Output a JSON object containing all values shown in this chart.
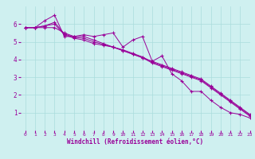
{
  "background_color": "#cff0f0",
  "grid_color": "#aadddd",
  "line_color": "#990099",
  "marker": "+",
  "xlim": [
    -0.5,
    23
  ],
  "ylim": [
    0,
    7
  ],
  "xlabel": "Windchill (Refroidissement éolien,°C)",
  "xticks": [
    0,
    1,
    2,
    3,
    4,
    5,
    6,
    7,
    8,
    9,
    10,
    11,
    12,
    13,
    14,
    15,
    16,
    17,
    18,
    19,
    20,
    21,
    22,
    23
  ],
  "yticks": [
    1,
    2,
    3,
    4,
    5,
    6
  ],
  "series": [
    [
      5.8,
      5.8,
      6.2,
      6.5,
      5.3,
      5.3,
      5.4,
      5.3,
      5.4,
      5.5,
      4.7,
      5.1,
      5.3,
      3.9,
      4.2,
      3.2,
      2.8,
      2.2,
      2.2,
      1.7,
      1.3,
      1.0,
      0.9,
      0.7
    ],
    [
      5.8,
      5.8,
      5.8,
      5.8,
      5.5,
      5.3,
      5.3,
      5.1,
      4.9,
      4.7,
      4.5,
      4.3,
      4.1,
      3.9,
      3.7,
      3.5,
      3.3,
      3.1,
      2.9,
      2.5,
      2.1,
      1.7,
      1.3,
      0.9
    ],
    [
      5.8,
      5.8,
      5.9,
      6.0,
      5.4,
      5.2,
      5.1,
      4.9,
      4.8,
      4.7,
      4.5,
      4.3,
      4.1,
      3.8,
      3.6,
      3.4,
      3.2,
      3.0,
      2.8,
      2.4,
      2.0,
      1.6,
      1.2,
      0.8
    ],
    [
      5.8,
      5.8,
      5.9,
      6.1,
      5.45,
      5.25,
      5.2,
      5.0,
      4.85,
      4.7,
      4.55,
      4.35,
      4.15,
      3.85,
      3.65,
      3.45,
      3.25,
      3.05,
      2.85,
      2.45,
      2.05,
      1.65,
      1.25,
      0.85
    ]
  ],
  "figsize": [
    3.2,
    2.0
  ],
  "dpi": 100
}
